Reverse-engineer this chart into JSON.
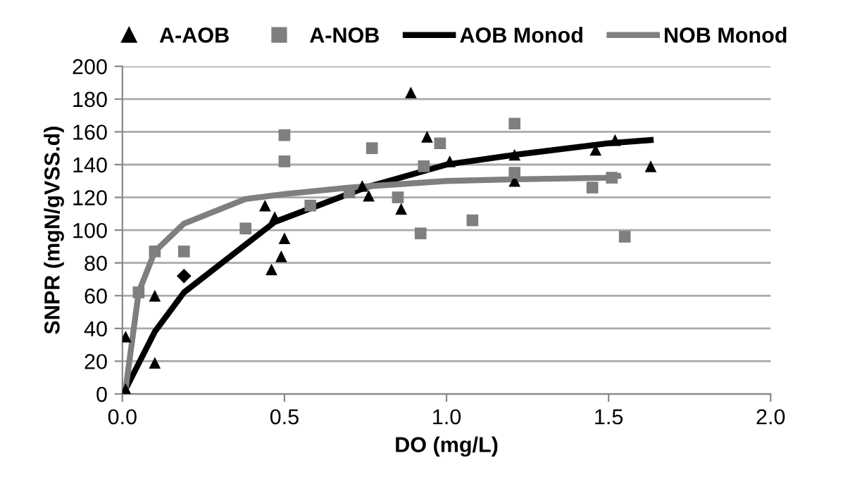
{
  "chart_data": {
    "type": "scatter",
    "xlabel": "DO (mg/L)",
    "ylabel": "SNPR (mgN/gVSS.d)",
    "xlim": [
      0,
      2
    ],
    "xticks": [
      {
        "value": 0,
        "label": "0.0"
      },
      {
        "value": 0.5,
        "label": "0.5"
      },
      {
        "value": 1,
        "label": "1.0"
      },
      {
        "value": 1.5,
        "label": "1.5"
      },
      {
        "value": 2,
        "label": "2.0"
      }
    ],
    "ylim": [
      0,
      200
    ],
    "yticks": [
      0,
      20,
      40,
      60,
      80,
      100,
      120,
      140,
      160,
      180,
      200
    ],
    "grid": "y",
    "legend": "top",
    "series": [
      {
        "name": "A-AOB",
        "marker": "triangle",
        "color": "#000000",
        "x": [
          0.01,
          0.01,
          0.1,
          0.1,
          0.44,
          0.47,
          0.46,
          0.49,
          0.5,
          0.74,
          0.76,
          0.86,
          0.89,
          0.94,
          1.01,
          1.21,
          1.21,
          1.46,
          1.52,
          1.63
        ],
        "values": [
          35,
          3,
          60,
          19,
          115,
          108,
          76,
          84,
          95,
          127,
          121,
          113,
          184,
          157,
          142,
          146,
          130,
          149,
          155,
          139
        ]
      },
      {
        "name": "A-NOB",
        "marker": "square",
        "color": "#7f7f7f",
        "x": [
          0.05,
          0.1,
          0.19,
          0.38,
          0.5,
          0.5,
          0.58,
          0.7,
          0.77,
          0.85,
          0.92,
          0.93,
          0.98,
          1.08,
          1.21,
          1.21,
          1.45,
          1.51,
          1.55
        ],
        "values": [
          62,
          87,
          87,
          101,
          158,
          142,
          115,
          123,
          150,
          120,
          98,
          139,
          153,
          106,
          165,
          135,
          126,
          132,
          96
        ]
      },
      {
        "marker": "diamond",
        "color": "#000000",
        "x": [
          0.19
        ],
        "values": [
          72
        ]
      },
      {
        "name": "AOB Monod",
        "type": "line",
        "marker": "none",
        "color": "#000000",
        "x": [
          0.01,
          0.1,
          0.19,
          0.47,
          0.75,
          1.0,
          1.21,
          1.5,
          1.63
        ],
        "values": [
          3,
          38,
          62,
          105,
          126,
          140,
          146,
          153,
          155
        ]
      },
      {
        "name": "NOB Monod",
        "type": "line",
        "marker": "none",
        "color": "#7f7f7f",
        "x": [
          0.01,
          0.05,
          0.1,
          0.19,
          0.38,
          0.5,
          0.7,
          1.0,
          1.21,
          1.5,
          1.53
        ],
        "values": [
          3,
          62,
          87,
          104,
          119,
          122,
          126,
          130,
          131,
          132,
          133
        ]
      }
    ]
  }
}
